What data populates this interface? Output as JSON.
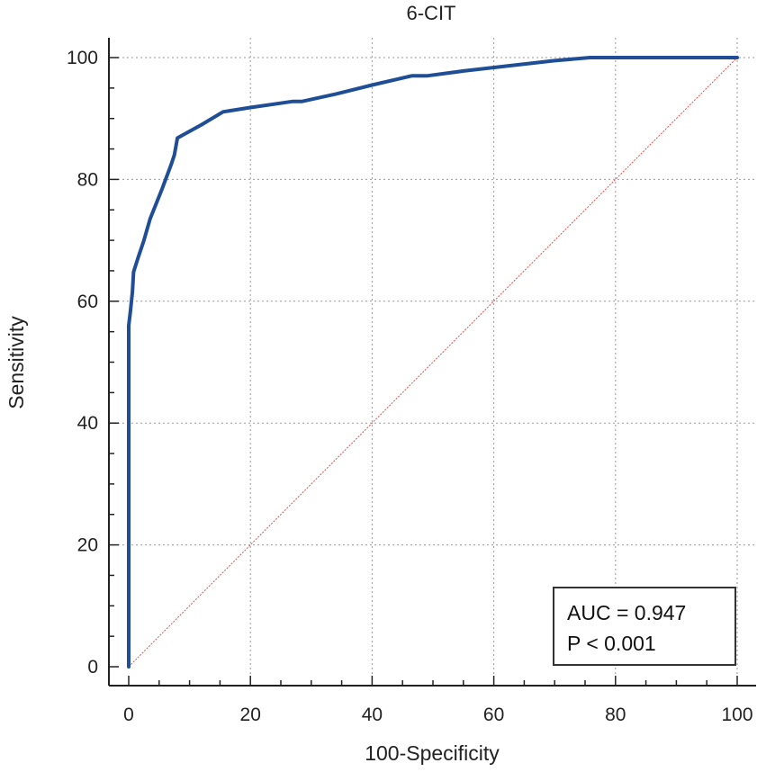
{
  "chart_data": {
    "type": "line",
    "title": "6-CIT",
    "xlabel": "100-Specificity",
    "ylabel": "Sensitivity",
    "xlim": [
      0,
      100
    ],
    "ylim": [
      0,
      100
    ],
    "xticks": [
      0,
      20,
      40,
      60,
      80,
      100
    ],
    "yticks": [
      0,
      20,
      40,
      60,
      80,
      100
    ],
    "grid": true,
    "series": [
      {
        "color": "#1f4e96",
        "x": [
          0,
          0,
          0.3,
          0.6,
          0.8,
          1.5,
          2.5,
          3.5,
          5.5,
          7.0,
          7.5,
          8.0,
          12.0,
          15.5,
          20.0,
          27.0,
          28.5,
          34.0,
          40.0,
          46.5,
          49.0,
          55.0,
          62.0,
          70.0,
          75.8,
          85.0,
          100.0
        ],
        "y": [
          0,
          56.0,
          58.5,
          61.5,
          64.8,
          67.0,
          70.0,
          73.5,
          78.5,
          82.5,
          84.0,
          86.8,
          89.0,
          91.1,
          91.8,
          92.8,
          92.8,
          94.0,
          95.5,
          97.0,
          97.0,
          97.8,
          98.6,
          99.5,
          100.0,
          100.0,
          100.0
        ]
      }
    ],
    "reference_line": {
      "x": [
        0,
        100
      ],
      "y": [
        0,
        100
      ],
      "color": "#d9534f"
    },
    "annotations": [
      "AUC = 0.947",
      "P < 0.001"
    ]
  }
}
